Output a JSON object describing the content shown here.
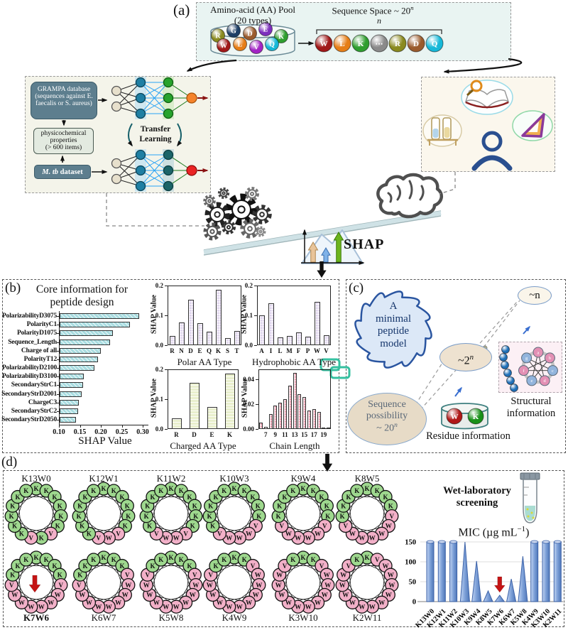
{
  "a": {
    "label": "(a)",
    "pool_title": "Amino-acid (AA) Pool",
    "pool_subtitle": "(20 types)",
    "pool_balls": [
      {
        "letter": "R",
        "color": "#8a8a1f"
      },
      {
        "letter": "G",
        "color": "#1e3f66"
      },
      {
        "letter": "D",
        "color": "#9a5b2d"
      },
      {
        "letter": "E",
        "color": "#7d2fbd"
      },
      {
        "letter": "K",
        "color": "#2f9e2f"
      },
      {
        "letter": "W",
        "color": "#a01818"
      },
      {
        "letter": "L",
        "color": "#e67e17"
      },
      {
        "letter": "V",
        "color": "#a224c4"
      },
      {
        "letter": "Q",
        "color": "#17b8d8"
      }
    ],
    "space_title": "Sequence Space ~ 20",
    "space_exp": "n",
    "n_label": "n",
    "seq_balls": [
      {
        "letter": "W",
        "color": "#a01818"
      },
      {
        "letter": "L",
        "color": "#e67e17"
      },
      {
        "letter": "K",
        "color": "#2f9e2f"
      },
      {
        "letter": "⋯",
        "color": "#8a8a8a"
      },
      {
        "letter": "R",
        "color": "#8a8a1f"
      },
      {
        "letter": "D",
        "color": "#9a5b2d"
      },
      {
        "letter": "Q",
        "color": "#17b8d8"
      }
    ]
  },
  "ml": {
    "grampa": [
      "GRAMPA database",
      "(sequences against E.",
      "faecalis or S. aureus)"
    ],
    "physico": [
      "physicochemical",
      "properties",
      "(> 600 items)"
    ],
    "mtb_italic": "M. tb",
    "mtb_rest": " dataset",
    "transfer": [
      "Transfer",
      "Learning"
    ]
  },
  "shap_label": "SHAP",
  "b": {
    "label": "(b)",
    "title": [
      "Core information for",
      "peptide design"
    ]
  },
  "c": {
    "label": "(c)",
    "badge": [
      "A",
      "minimal",
      "peptide",
      "model"
    ],
    "n_ellipse": "~n",
    "twon_base": "~2",
    "twon_exp": "n",
    "seq_lines": [
      "Sequence",
      "possibility"
    ],
    "seq_base": "~ 20",
    "seq_exp": "n",
    "residue_balls": [
      {
        "letter": "W",
        "color": "#b01818"
      },
      {
        "letter": "K",
        "color": "#189018"
      }
    ],
    "residue_label": "Residue information",
    "structural_label": [
      "Structural",
      "information"
    ],
    "mini_wheel_nodes": [
      {
        "l": "a",
        "c": "#e390b4"
      },
      {
        "l": "b",
        "c": "#e390b4"
      },
      {
        "l": "c",
        "c": "#92b4dc"
      },
      {
        "l": "d",
        "c": "#e390b4"
      },
      {
        "l": "e",
        "c": "#92b4dc"
      },
      {
        "l": "f",
        "c": "#e390b4"
      },
      {
        "l": "g",
        "c": "#92b4dc"
      }
    ]
  },
  "d": {
    "label": "(d)",
    "wetlab": [
      "Wet-laboratory",
      "screening"
    ],
    "mic_title_prefix": "MIC (µg mL",
    "mic_title_sup": "−1",
    "mic_title_suffix": ")",
    "wheels": [
      {
        "name": "K13W0",
        "residues": "KKKKKKVKVKKKKKK",
        "bold": false,
        "arrow": false
      },
      {
        "name": "K12W1",
        "residues": "KKKKKKVWVKKKKKK",
        "bold": false,
        "arrow": false
      },
      {
        "name": "K11W2",
        "residues": "KKKKKKVWWVKKKKK",
        "bold": false,
        "arrow": false
      },
      {
        "name": "K10W3",
        "residues": "KKKKKVWWWVKKKKK",
        "bold": false,
        "arrow": false
      },
      {
        "name": "K9W4",
        "residues": "KKKKKVWWWWVKKKK",
        "bold": false,
        "arrow": false
      },
      {
        "name": "K8W5",
        "residues": "KKKKVWWWWWVKKKK",
        "bold": false,
        "arrow": false
      },
      {
        "name": "K7W6",
        "residues": "KKKKVWWWWWWVKKK",
        "bold": true,
        "arrow": true
      },
      {
        "name": "K6W7",
        "residues": "KKKVWWWWWWWVKKK",
        "bold": false,
        "arrow": false
      },
      {
        "name": "K5W8",
        "residues": "KKKVWWWWWWWWVKK",
        "bold": false,
        "arrow": false
      },
      {
        "name": "K4W9",
        "residues": "KKVWWWWWWWWWVKK",
        "bold": false,
        "arrow": false
      },
      {
        "name": "K3W10",
        "residues": "KKVWWWWWWWWWWVK",
        "bold": false,
        "arrow": false
      },
      {
        "name": "K2W11",
        "residues": "KVWWWWWWWWWWWVK",
        "bold": false,
        "arrow": false
      }
    ],
    "residue_colors": {
      "K": "#9ed88e",
      "V": "#f2b0c8",
      "W": "#f2b0c8"
    }
  },
  "chart_data": [
    {
      "id": "shap_features",
      "type": "bar",
      "orientation": "horizontal",
      "title": "Core information for peptide design",
      "xlabel": "SHAP Value",
      "xlim": [
        0.1,
        0.31
      ],
      "xticks": [
        0.1,
        0.15,
        0.2,
        0.25,
        0.3
      ],
      "categories": [
        "PolarizabilityD3075",
        "PolarityC1",
        "PolarityD1075",
        "Sequence_Length",
        "Charge of all",
        "PolarityT12",
        "PolarizabilityD2100",
        "PolarizabilityD3100",
        "SecondaryStrC1",
        "SecondaryStrD2001",
        "ChargeC3",
        "SecondaryStrC2",
        "SecondaryStrD2050"
      ],
      "values": [
        0.29,
        0.267,
        0.227,
        0.221,
        0.199,
        0.192,
        0.183,
        0.158,
        0.156,
        0.152,
        0.146,
        0.144,
        0.139
      ],
      "color": "#a9dde1"
    },
    {
      "id": "polar",
      "type": "bar",
      "xlabel": "Polar AA Type",
      "ylabel": "SHAP Value",
      "ylim": [
        0,
        0.2
      ],
      "yticks": [
        0.2,
        0.1,
        0.0
      ],
      "categories": [
        "R",
        "N",
        "D",
        "E",
        "Q",
        "K",
        "S",
        "T"
      ],
      "values": [
        0.032,
        0.076,
        0.152,
        0.073,
        0.045,
        0.185,
        0.025,
        0.048
      ],
      "color": "#ddd2ec"
    },
    {
      "id": "hydrophobic",
      "type": "bar",
      "xlabel": "Hydrophobic AA Type",
      "ylabel": "SHAP Value",
      "ylim": [
        0,
        0.2
      ],
      "yticks": [
        0.2,
        0.1,
        0.0
      ],
      "categories": [
        "A",
        "I",
        "L",
        "M",
        "F",
        "P",
        "W",
        "V"
      ],
      "values": [
        0.101,
        0.141,
        0.027,
        0.031,
        0.043,
        0.029,
        0.146,
        0.034
      ],
      "color": "#ddd2ec"
    },
    {
      "id": "charged",
      "type": "bar",
      "xlabel": "Charged AA Type",
      "ylabel": "SHAP Value",
      "ylim": [
        0,
        0.2
      ],
      "yticks": [
        0.2,
        0.1,
        0.0
      ],
      "categories": [
        "R",
        "D",
        "E",
        "K"
      ],
      "values": [
        0.035,
        0.155,
        0.075,
        0.185
      ],
      "color": "#e9efcd"
    },
    {
      "id": "chain_length",
      "type": "bar",
      "xlabel": "Chain Length",
      "ylabel": "SHAP Value",
      "ylim": [
        0,
        0.048
      ],
      "yticks": [
        0.04,
        0.02,
        0.0
      ],
      "categories": [
        "6",
        "7",
        "8",
        "9",
        "10",
        "11",
        "12",
        "13",
        "14",
        "15",
        "16",
        "17",
        "18",
        "19",
        "20"
      ],
      "xticks_shown": [
        "7",
        "9",
        "11",
        "13",
        "15",
        "17",
        "19"
      ],
      "values": [
        0.005,
        0.002,
        0.012,
        0.019,
        0.021,
        0.024,
        0.035,
        0.045,
        0.028,
        0.026,
        0.015,
        0.016,
        0.014,
        0.001,
        0.001
      ],
      "color": "#ed9fb0"
    },
    {
      "id": "mic",
      "type": "bar",
      "title": "MIC (µg mL⁻¹)",
      "ylim": [
        0,
        160
      ],
      "yticks": [
        150,
        100,
        50,
        0
      ],
      "categories": [
        "K13W0",
        "K12W1",
        "K11W2",
        "K10W3",
        "K9W4",
        "K8W5",
        "K7W6",
        "K6W7",
        "K5W8",
        "K4W9",
        "K3W10",
        "K2W11"
      ],
      "values": [
        150,
        150,
        150,
        150,
        102,
        27,
        16,
        57,
        114,
        150,
        150,
        150
      ],
      "bar_shapes": [
        "column",
        "column",
        "column",
        "spike",
        "spike",
        "spike",
        "spike",
        "spike",
        "spike",
        "column",
        "column",
        "column"
      ],
      "highlight_arrow_at": "K7W6",
      "color": "#7da0d8"
    }
  ]
}
